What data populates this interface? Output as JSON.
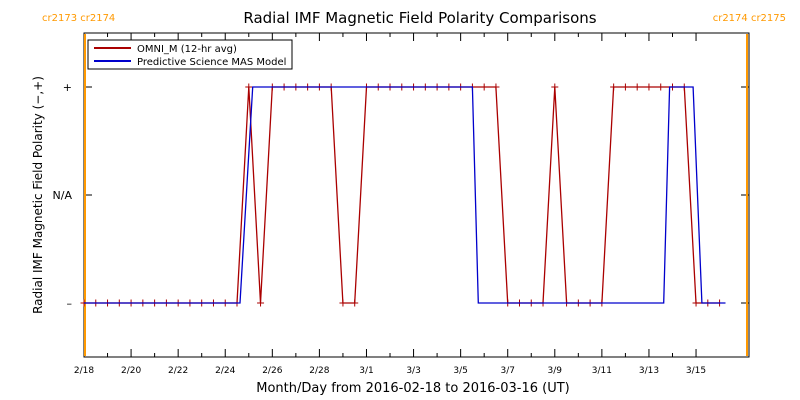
{
  "chart_data": {
    "type": "line",
    "title": "Radial IMF Magnetic Field Polarity Comparisons",
    "xlabel": "Month/Day from 2016-02-18 to 2016-03-16 (UT)",
    "ylabel": "Radial IMF Magnetic Field Polarity (−,+)",
    "x_unit": "days",
    "xlim": [
      "2016-02-18 00:00",
      "2016-03-17 06:00"
    ],
    "ylim": [
      -1.5,
      1.5
    ],
    "x_ticks": [
      {
        "x": "2016-02-18",
        "label": "2/18"
      },
      {
        "x": "2016-02-20",
        "label": "2/20"
      },
      {
        "x": "2016-02-22",
        "label": "2/22"
      },
      {
        "x": "2016-02-24",
        "label": "2/24"
      },
      {
        "x": "2016-02-26",
        "label": "2/26"
      },
      {
        "x": "2016-02-28",
        "label": "2/28"
      },
      {
        "x": "2016-03-01",
        "label": "3/1"
      },
      {
        "x": "2016-03-03",
        "label": "3/3"
      },
      {
        "x": "2016-03-05",
        "label": "3/5"
      },
      {
        "x": "2016-03-07",
        "label": "3/7"
      },
      {
        "x": "2016-03-09",
        "label": "3/9"
      },
      {
        "x": "2016-03-11",
        "label": "3/11"
      },
      {
        "x": "2016-03-13",
        "label": "3/13"
      },
      {
        "x": "2016-03-15",
        "label": "3/15"
      }
    ],
    "y_ticks": [
      {
        "y": 1,
        "label": "+"
      },
      {
        "y": 0,
        "label": "N/A"
      },
      {
        "y": -1,
        "label": "–"
      }
    ],
    "carrington_markers": [
      {
        "x": "2016-02-18 00:00",
        "left_label": "",
        "right_label": "",
        "top_text": "cr2173 cr2174",
        "color": "#ff9900",
        "align": "left"
      },
      {
        "x": "2016-03-17 06:00",
        "left_label": "",
        "right_label": "",
        "top_text": "cr2174 cr2175",
        "color": "#ff9900",
        "align": "right"
      }
    ],
    "legend": {
      "position": "top-left"
    },
    "series": [
      {
        "name": "OMNI_M (12-hr avg)",
        "color": "#aa0000",
        "markers": true,
        "points": [
          [
            "2016-02-18 00:00",
            -1
          ],
          [
            "2016-02-18 12:00",
            -1
          ],
          [
            "2016-02-19 00:00",
            -1
          ],
          [
            "2016-02-19 12:00",
            -1
          ],
          [
            "2016-02-20 00:00",
            -1
          ],
          [
            "2016-02-20 12:00",
            -1
          ],
          [
            "2016-02-21 00:00",
            -1
          ],
          [
            "2016-02-21 12:00",
            -1
          ],
          [
            "2016-02-22 00:00",
            -1
          ],
          [
            "2016-02-22 12:00",
            -1
          ],
          [
            "2016-02-23 00:00",
            -1
          ],
          [
            "2016-02-23 12:00",
            -1
          ],
          [
            "2016-02-24 00:00",
            -1
          ],
          [
            "2016-02-24 12:00",
            -1
          ],
          [
            "2016-02-25 00:00",
            1
          ],
          [
            "2016-02-25 12:00",
            -1
          ],
          [
            "2016-02-26 00:00",
            1
          ],
          [
            "2016-02-26 12:00",
            1
          ],
          [
            "2016-02-27 00:00",
            1
          ],
          [
            "2016-02-27 12:00",
            1
          ],
          [
            "2016-02-28 00:00",
            1
          ],
          [
            "2016-02-28 12:00",
            1
          ],
          [
            "2016-02-29 00:00",
            -1
          ],
          [
            "2016-02-29 12:00",
            -1
          ],
          [
            "2016-03-01 00:00",
            1
          ],
          [
            "2016-03-01 12:00",
            1
          ],
          [
            "2016-03-02 00:00",
            1
          ],
          [
            "2016-03-02 12:00",
            1
          ],
          [
            "2016-03-03 00:00",
            1
          ],
          [
            "2016-03-03 12:00",
            1
          ],
          [
            "2016-03-04 00:00",
            1
          ],
          [
            "2016-03-04 12:00",
            1
          ],
          [
            "2016-03-05 00:00",
            1
          ],
          [
            "2016-03-05 12:00",
            1
          ],
          [
            "2016-03-06 00:00",
            1
          ],
          [
            "2016-03-06 12:00",
            1
          ],
          [
            "2016-03-07 00:00",
            -1
          ],
          [
            "2016-03-07 12:00",
            -1
          ],
          [
            "2016-03-08 00:00",
            -1
          ],
          [
            "2016-03-08 12:00",
            -1
          ],
          [
            "2016-03-09 00:00",
            1
          ],
          [
            "2016-03-09 12:00",
            -1
          ],
          [
            "2016-03-10 00:00",
            -1
          ],
          [
            "2016-03-10 12:00",
            -1
          ],
          [
            "2016-03-11 00:00",
            -1
          ],
          [
            "2016-03-11 12:00",
            1
          ],
          [
            "2016-03-12 00:00",
            1
          ],
          [
            "2016-03-12 12:00",
            1
          ],
          [
            "2016-03-13 00:00",
            1
          ],
          [
            "2016-03-13 12:00",
            1
          ],
          [
            "2016-03-14 00:00",
            1
          ],
          [
            "2016-03-14 12:00",
            1
          ],
          [
            "2016-03-15 00:00",
            -1
          ],
          [
            "2016-03-15 12:00",
            -1
          ],
          [
            "2016-03-16 00:00",
            -1
          ]
        ]
      },
      {
        "name": "Predictive Science MAS Model",
        "color": "#0000cc",
        "markers": false,
        "points": [
          [
            "2016-02-18 00:00",
            -1
          ],
          [
            "2016-02-24 15:00",
            -1
          ],
          [
            "2016-02-25 04:00",
            1
          ],
          [
            "2016-03-05 12:00",
            1
          ],
          [
            "2016-03-05 18:00",
            -1
          ],
          [
            "2016-03-13 15:00",
            -1
          ],
          [
            "2016-03-13 21:00",
            1
          ],
          [
            "2016-03-14 21:00",
            1
          ],
          [
            "2016-03-15 06:00",
            -1
          ],
          [
            "2016-03-16 06:00",
            -1
          ]
        ]
      }
    ]
  }
}
